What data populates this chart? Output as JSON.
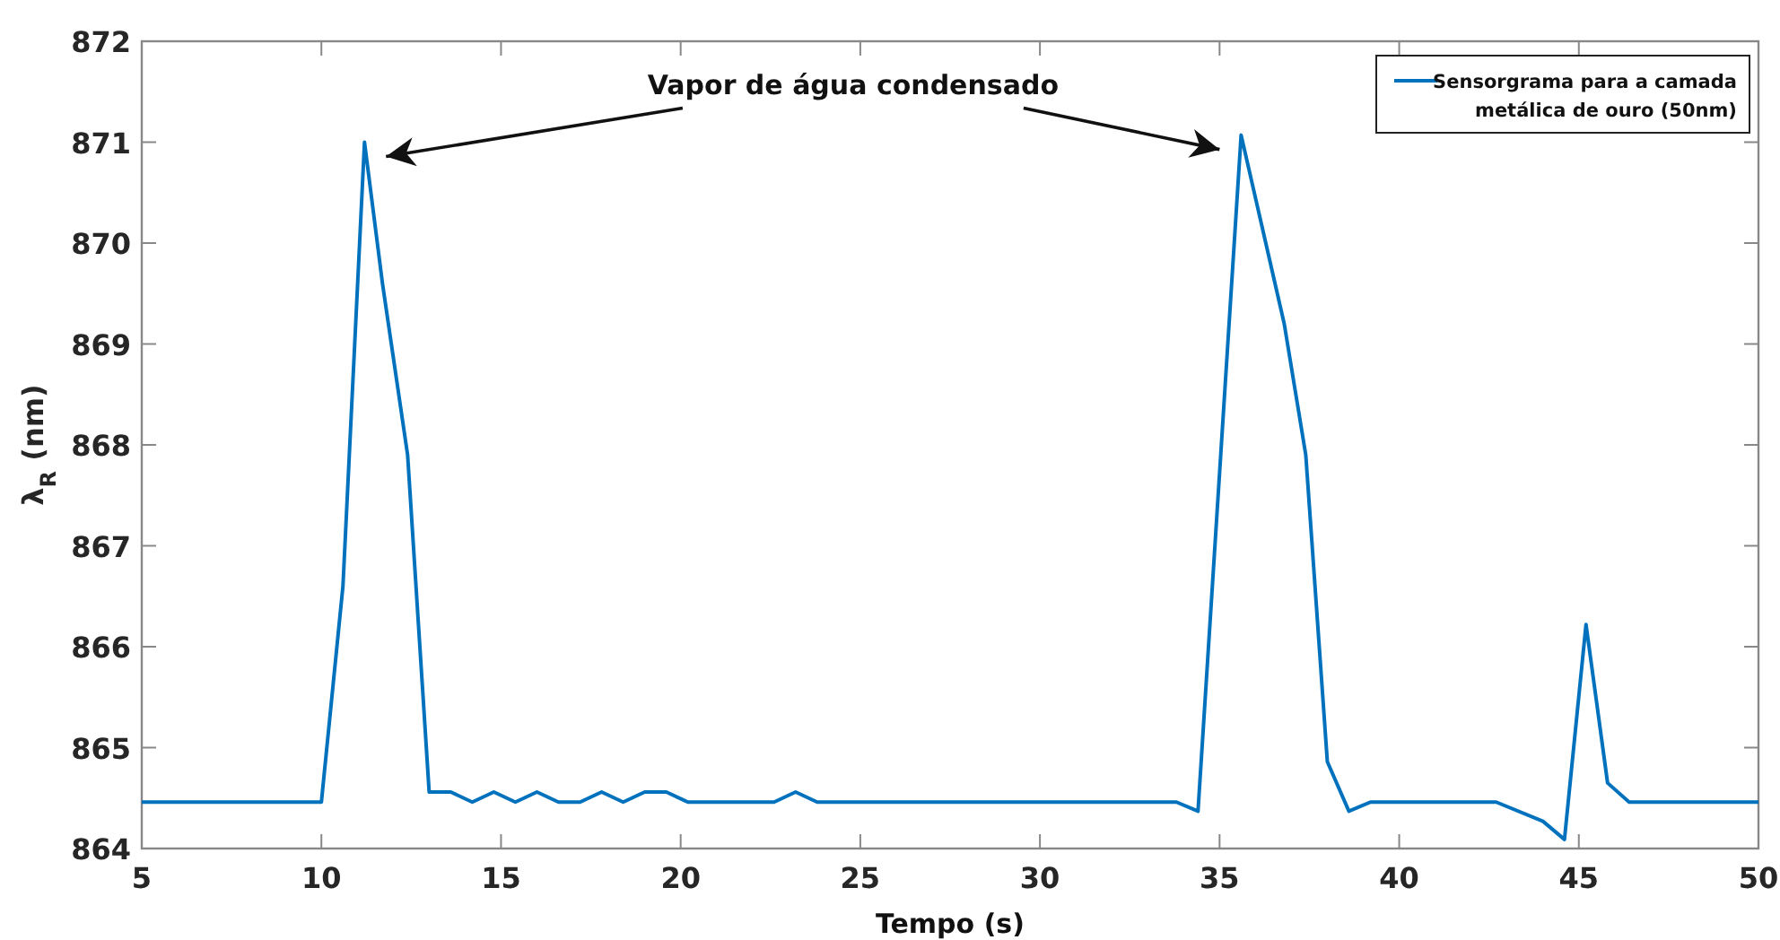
{
  "chart_data": {
    "type": "line",
    "xlabel": "Tempo  (s)",
    "ylabel": "λ$_{R}$ (nm)",
    "xlim": [
      5,
      50
    ],
    "xticks": [
      5,
      10,
      15,
      20,
      25,
      30,
      35,
      40,
      45,
      50
    ],
    "ylim": [
      864,
      872
    ],
    "yticks": [
      864,
      865,
      866,
      867,
      868,
      869,
      870,
      871,
      872
    ],
    "grid": false,
    "legend": "top right",
    "marker": "none",
    "line_style": "solid",
    "annotations": [
      "Vapor de água condensado"
    ],
    "series": [
      {
        "name": "Sensorgrama para a camada metálica de ouro (50nm)",
        "color": "#0072bd",
        "x": [
          5,
          10,
          10.6,
          11.2,
          11.7,
          12.4,
          13.0,
          13.6,
          14.2,
          14.8,
          15.4,
          16.0,
          16.6,
          17.2,
          17.8,
          18.4,
          19.0,
          19.6,
          20.2,
          22.6,
          23.2,
          23.8,
          33.8,
          34.4,
          35.6,
          36.8,
          37.4,
          38.0,
          38.6,
          39.2,
          42.7,
          44.0,
          44.6,
          45.2,
          45.8,
          46.4,
          50
        ],
        "values": [
          864.46,
          864.46,
          866.6,
          871.0,
          869.6,
          867.9,
          864.56,
          864.56,
          864.46,
          864.56,
          864.46,
          864.56,
          864.46,
          864.46,
          864.56,
          864.46,
          864.56,
          864.56,
          864.46,
          864.46,
          864.56,
          864.46,
          864.46,
          864.37,
          871.07,
          869.2,
          867.9,
          864.86,
          864.37,
          864.46,
          864.46,
          864.27,
          864.09,
          866.22,
          864.65,
          864.46,
          864.46
        ]
      }
    ]
  }
}
